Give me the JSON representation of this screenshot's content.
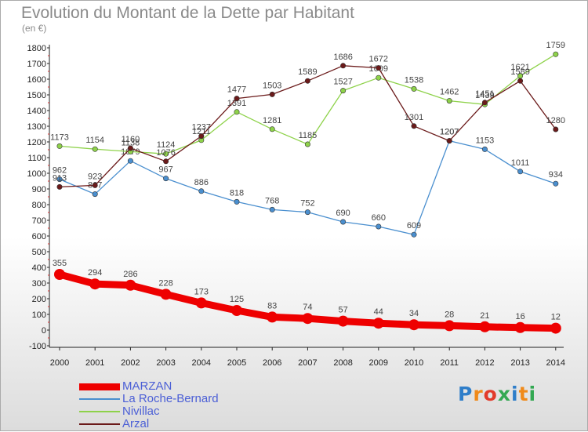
{
  "title": "Evolution du Montant de la Dette par Habitant",
  "unit": "(en €)",
  "logo": {
    "text": "Proxiti",
    "colors": [
      "#2f7ec9",
      "#f08a1a",
      "#e23a2a",
      "#33a852",
      "#2f7ec9",
      "#f08a1a",
      "#33a852"
    ]
  },
  "chart_data": {
    "type": "line",
    "x": [
      "2000",
      "2001",
      "2002",
      "2003",
      "2004",
      "2005",
      "2006",
      "2007",
      "2008",
      "2009",
      "2010",
      "2011",
      "2012",
      "2013",
      "2014"
    ],
    "ylim": [
      -100,
      1800
    ],
    "yticks": [
      -100,
      0,
      100,
      200,
      300,
      400,
      500,
      600,
      700,
      800,
      900,
      1000,
      1100,
      1200,
      1300,
      1400,
      1500,
      1600,
      1700,
      1800
    ],
    "grid": false,
    "legend": "bottom-left",
    "series": [
      {
        "name": "MARZAN",
        "color": "#ee0000",
        "values": [
          355,
          294,
          286,
          228,
          173,
          125,
          83,
          74,
          57,
          44,
          34,
          28,
          21,
          16,
          12
        ]
      },
      {
        "name": "La Roche-Bernard",
        "color": "#4a8fcf",
        "values": [
          962,
          867,
          1079,
          967,
          886,
          818,
          768,
          752,
          690,
          660,
          609,
          1207,
          1153,
          1011,
          934
        ]
      },
      {
        "name": "Nivillac",
        "color": "#8ed24a",
        "values": [
          1173,
          1154,
          1138,
          1124,
          1211,
          1391,
          1281,
          1185,
          1527,
          1609,
          1538,
          1462,
          1439,
          1621,
          1759
        ]
      },
      {
        "name": "Arzal",
        "color": "#6b1a1a",
        "values": [
          913,
          923,
          1160,
          1076,
          1237,
          1477,
          1503,
          1589,
          1686,
          1672,
          1301,
          1207,
          1451,
          1589,
          1280
        ]
      }
    ]
  }
}
